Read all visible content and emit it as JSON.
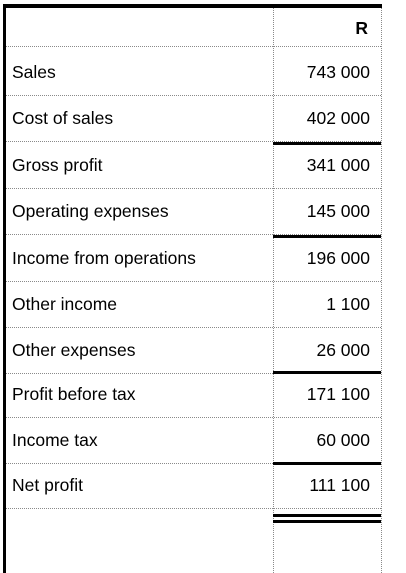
{
  "table": {
    "currency_header": "R",
    "rows": [
      {
        "label": "Sales",
        "value": "743 000"
      },
      {
        "label": "Cost of sales",
        "value": "402 000"
      },
      {
        "label": "Gross profit",
        "value": "341 000"
      },
      {
        "label": "Operating expenses",
        "value": "145 000"
      },
      {
        "label": "Income from operations",
        "value": "196 000"
      },
      {
        "label": "Other income",
        "value": "1 100"
      },
      {
        "label": "Other expenses",
        "value": "26 000"
      },
      {
        "label": "Profit before tax",
        "value": "171 100"
      },
      {
        "label": "Income tax",
        "value": "60 000"
      },
      {
        "label": "Net profit",
        "value": "111 100"
      }
    ]
  }
}
